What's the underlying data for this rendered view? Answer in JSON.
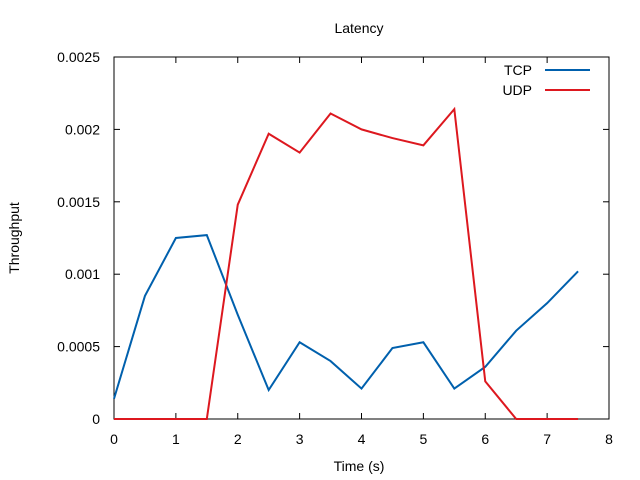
{
  "chart_data": {
    "type": "line",
    "title": "Latency",
    "xlabel": "Time (s)",
    "ylabel": "Throughput",
    "xlim": [
      0,
      8
    ],
    "ylim": [
      0,
      0.0025
    ],
    "xticks": [
      "0",
      "1",
      "2",
      "3",
      "4",
      "5",
      "6",
      "7",
      "8"
    ],
    "yticks": [
      "0",
      "0.0005",
      "0.001",
      "0.0015",
      "0.002",
      "0.0025"
    ],
    "grid": false,
    "legend_position": "top-right",
    "series": [
      {
        "name": "TCP",
        "color": "#0060ad",
        "x": [
          0,
          0.5,
          1,
          1.5,
          2,
          2.5,
          3,
          3.5,
          4,
          4.5,
          5,
          5.5,
          6,
          6.5,
          7,
          7.5
        ],
        "y": [
          0.00014,
          0.00085,
          0.00125,
          0.00127,
          0.00072,
          0.0002,
          0.00053,
          0.0004,
          0.00021,
          0.00049,
          0.00053,
          0.00021,
          0.00036,
          0.00061,
          0.0008,
          0.00102
        ]
      },
      {
        "name": "UDP",
        "color": "#dd181f",
        "x": [
          0,
          0.5,
          1,
          1.5,
          2,
          2.5,
          3,
          3.5,
          4,
          4.5,
          5,
          5.5,
          6,
          6.5,
          7,
          7.5
        ],
        "y": [
          0,
          0,
          0,
          0,
          0.00148,
          0.00197,
          0.00184,
          0.00211,
          0.002,
          0.00194,
          0.00189,
          0.00214,
          0.00026,
          0,
          0,
          0
        ]
      }
    ]
  }
}
